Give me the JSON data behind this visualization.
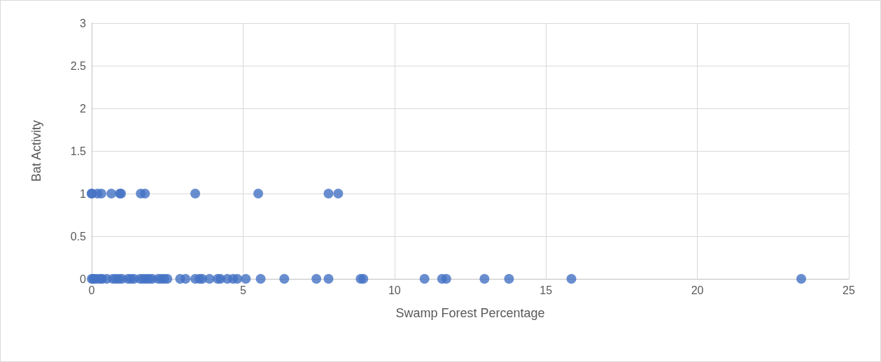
{
  "chart_data": {
    "type": "scatter",
    "xlabel": "Swamp Forest Percentage",
    "ylabel": "Bat Activity",
    "series": [
      {
        "color": "#4472c4",
        "x": [
          0,
          0,
          0.19,
          0.32,
          0.65,
          0.93,
          0.97,
          1.62,
          1.76,
          3.42,
          5.5,
          7.82,
          8.14,
          0,
          0.05,
          0.1,
          0.2,
          0.3,
          0.35,
          0.5,
          0.7,
          0.8,
          0.9,
          1.0,
          1.2,
          1.3,
          1.4,
          1.6,
          1.7,
          1.8,
          1.9,
          2.0,
          2.2,
          2.3,
          2.4,
          2.5,
          2.92,
          3.1,
          3.42,
          3.56,
          3.65,
          3.89,
          4.16,
          4.25,
          4.48,
          4.67,
          4.81,
          5.09,
          5.58,
          6.36,
          7.42,
          7.82,
          8.88,
          8.97,
          10.99,
          11.57,
          11.71,
          12.97,
          13.78,
          15.84,
          23.43
        ],
        "values": [
          1,
          1,
          1,
          1,
          1,
          1,
          1,
          1,
          1,
          1,
          1,
          1,
          1,
          0,
          0,
          0,
          0,
          0,
          0,
          0,
          0,
          0,
          0,
          0,
          0,
          0,
          0,
          0,
          0,
          0,
          0,
          0,
          0,
          0,
          0,
          0,
          0,
          0,
          0,
          0,
          0,
          0,
          0,
          0,
          0,
          0,
          0,
          0,
          0,
          0,
          0,
          0,
          0,
          0,
          0,
          0,
          0,
          0,
          0,
          0,
          0
        ]
      }
    ],
    "xlim": [
      0,
      25
    ],
    "xticks": [
      0,
      5,
      10,
      15,
      20,
      25
    ],
    "ylim": [
      0,
      3
    ],
    "yticks": [
      0,
      0.5,
      1,
      1.5,
      2,
      2.5,
      3
    ],
    "grid": true,
    "marker": "circle"
  }
}
